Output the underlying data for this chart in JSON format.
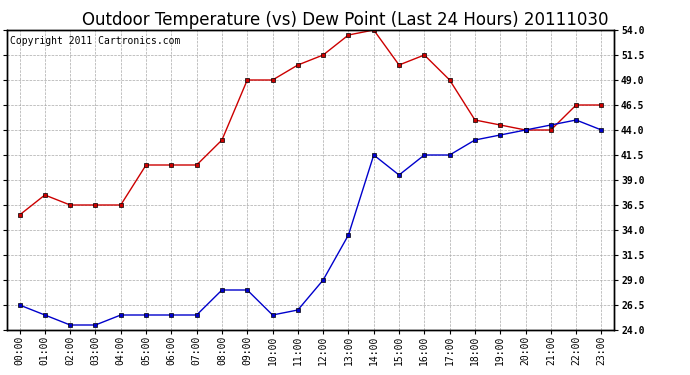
{
  "title": "Outdoor Temperature (vs) Dew Point (Last 24 Hours) 20111030",
  "copyright_text": "Copyright 2011 Cartronics.com",
  "x_labels": [
    "00:00",
    "01:00",
    "02:00",
    "03:00",
    "04:00",
    "05:00",
    "06:00",
    "07:00",
    "08:00",
    "09:00",
    "10:00",
    "11:00",
    "12:00",
    "13:00",
    "14:00",
    "15:00",
    "16:00",
    "17:00",
    "18:00",
    "19:00",
    "20:00",
    "21:00",
    "22:00",
    "23:00"
  ],
  "temp_values": [
    35.5,
    37.5,
    36.5,
    36.5,
    36.5,
    40.5,
    40.5,
    40.5,
    43.0,
    49.0,
    49.0,
    50.5,
    51.5,
    53.5,
    54.0,
    50.5,
    51.5,
    49.0,
    45.0,
    44.5,
    44.0,
    44.0,
    46.5,
    46.5
  ],
  "dew_values": [
    26.5,
    25.5,
    24.5,
    24.5,
    25.5,
    25.5,
    25.5,
    25.5,
    28.0,
    28.0,
    25.5,
    26.0,
    29.0,
    33.5,
    41.5,
    39.5,
    41.5,
    41.5,
    43.0,
    43.5,
    44.0,
    44.5,
    45.0,
    44.0
  ],
  "temp_color": "#cc0000",
  "dew_color": "#0000cc",
  "bg_color": "#ffffff",
  "grid_color": "#aaaaaa",
  "ylim_min": 24.0,
  "ylim_max": 54.0,
  "ytick_interval": 2.5,
  "title_fontsize": 12,
  "tick_fontsize": 7,
  "copyright_fontsize": 7
}
